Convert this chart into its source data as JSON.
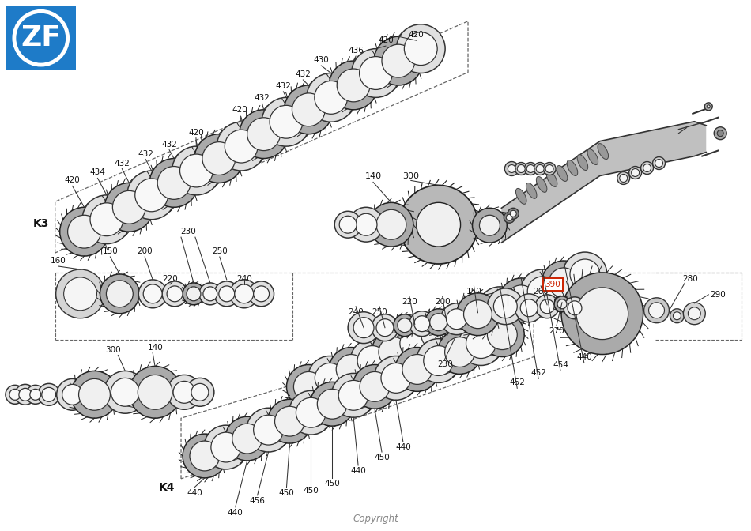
{
  "copyright": "Copyright",
  "background_color": "#ffffff",
  "zf_logo_bg": "#1e7bc8",
  "zf_text": "ZF",
  "k3_label": "K3",
  "k4_label": "K4",
  "label_390_color": "#cc2200",
  "disc_teeth_color": "#444444",
  "disc_outer_toothed": "#aaaaaa",
  "disc_outer_flat": "#dddddd",
  "disc_inner_color": "#ffffff",
  "disc_edge_color": "#222222",
  "line_color": "#333333",
  "label_color": "#111111"
}
